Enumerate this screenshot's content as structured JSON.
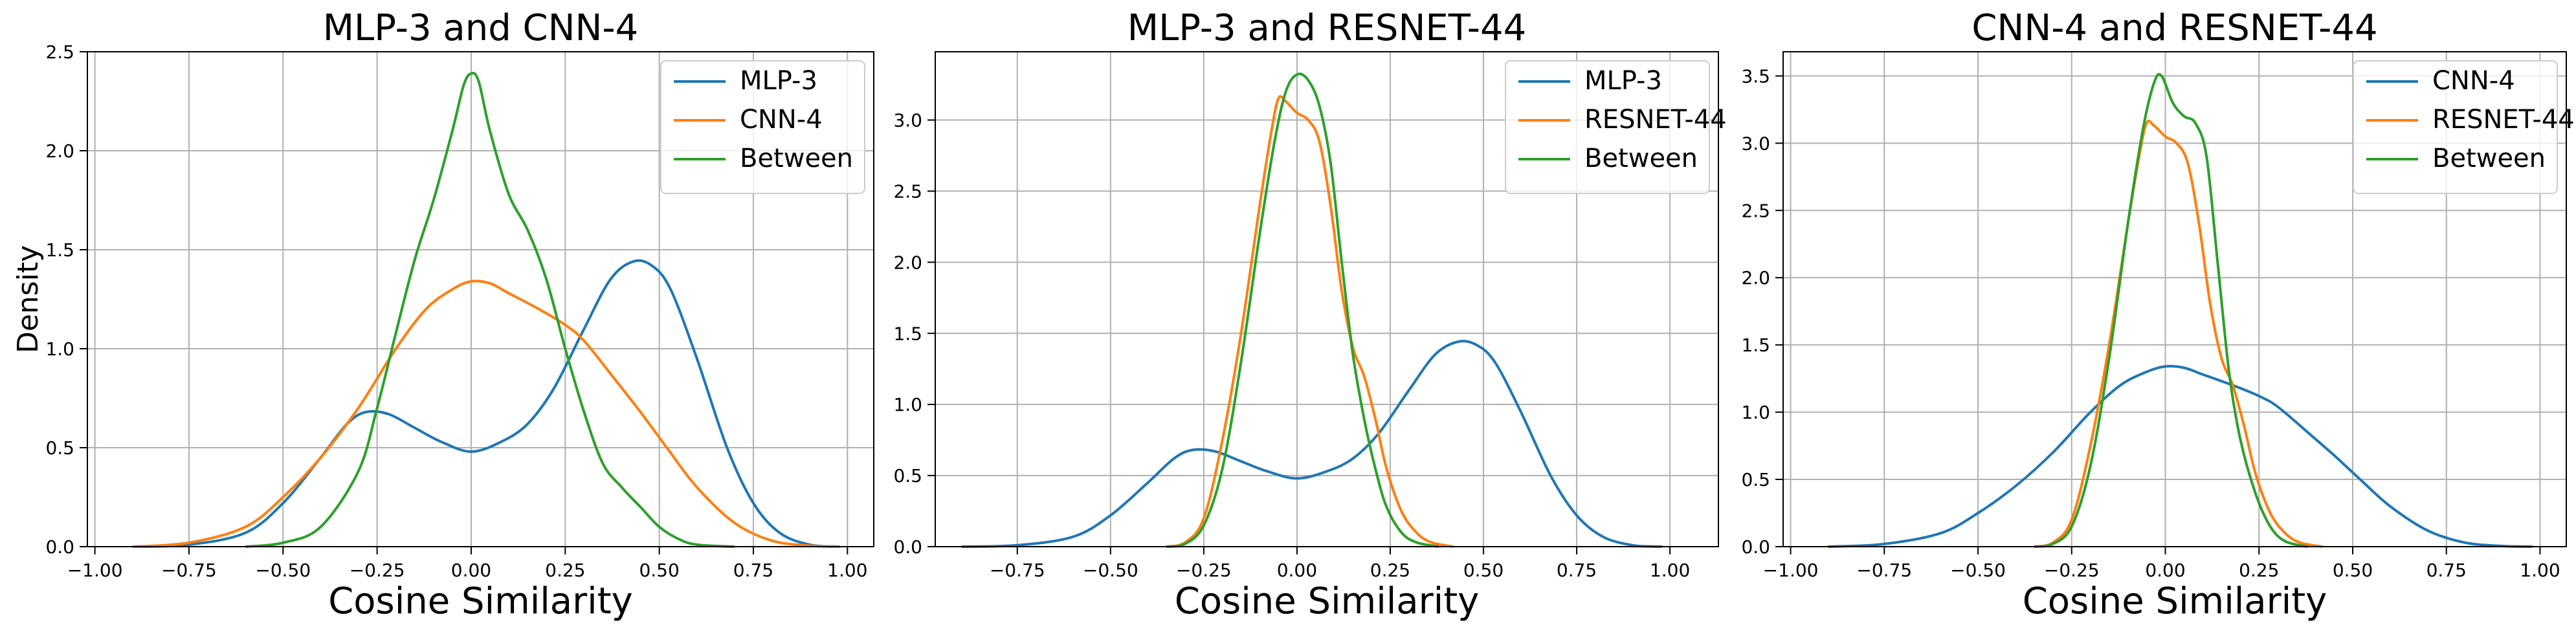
{
  "chart_data": [
    {
      "type": "line",
      "title": "MLP-3 and CNN-4",
      "xlabel": "Cosine Similarity",
      "ylabel": "Density",
      "xlim": [
        -1.02,
        1.07
      ],
      "ylim": [
        0,
        2.5
      ],
      "xticks": [
        -1.0,
        -0.75,
        -0.5,
        -0.25,
        0.0,
        0.25,
        0.5,
        0.75,
        1.0
      ],
      "xtick_labels": [
        "−1.00",
        "−0.75",
        "−0.50",
        "−0.25",
        "0.00",
        "0.25",
        "0.50",
        "0.75",
        "1.00"
      ],
      "yticks": [
        0,
        0.5,
        1.0,
        1.5,
        2.0,
        2.5
      ],
      "ytick_labels": [
        "0.0",
        "0.5",
        "1.0",
        "1.5",
        "2.0",
        "2.5"
      ],
      "grid": true,
      "legend_position": "top-right",
      "series": [
        {
          "name": "MLP-3",
          "color": "#1f77b4",
          "x": [
            -0.9,
            -0.75,
            -0.6,
            -0.5,
            -0.4,
            -0.33,
            -0.28,
            -0.22,
            -0.15,
            -0.08,
            0.0,
            0.08,
            0.15,
            0.22,
            0.3,
            0.37,
            0.43,
            0.48,
            0.53,
            0.6,
            0.68,
            0.75,
            0.82,
            0.9,
            0.98
          ],
          "y": [
            0.0,
            0.01,
            0.07,
            0.22,
            0.45,
            0.62,
            0.68,
            0.67,
            0.6,
            0.53,
            0.48,
            0.53,
            0.62,
            0.8,
            1.1,
            1.35,
            1.44,
            1.42,
            1.3,
            0.95,
            0.5,
            0.22,
            0.07,
            0.01,
            0.0
          ]
        },
        {
          "name": "CNN-4",
          "color": "#ff7f0e",
          "x": [
            -0.9,
            -0.75,
            -0.6,
            -0.5,
            -0.4,
            -0.3,
            -0.2,
            -0.12,
            -0.05,
            0.0,
            0.05,
            0.1,
            0.18,
            0.25,
            0.3,
            0.38,
            0.45,
            0.52,
            0.6,
            0.7,
            0.8,
            0.9,
            0.98
          ],
          "y": [
            0.0,
            0.02,
            0.1,
            0.25,
            0.45,
            0.7,
            1.0,
            1.2,
            1.3,
            1.34,
            1.33,
            1.28,
            1.2,
            1.12,
            1.04,
            0.85,
            0.68,
            0.5,
            0.3,
            0.12,
            0.03,
            0.005,
            0.0
          ]
        },
        {
          "name": "Between",
          "color": "#2ca02c",
          "x": [
            -0.6,
            -0.5,
            -0.4,
            -0.3,
            -0.25,
            -0.2,
            -0.15,
            -0.1,
            -0.05,
            -0.02,
            0.0,
            0.02,
            0.05,
            0.1,
            0.15,
            0.2,
            0.25,
            0.3,
            0.35,
            0.4,
            0.45,
            0.5,
            0.55,
            0.6,
            0.7
          ],
          "y": [
            0.0,
            0.02,
            0.1,
            0.38,
            0.7,
            1.08,
            1.45,
            1.75,
            2.1,
            2.33,
            2.39,
            2.35,
            2.1,
            1.78,
            1.6,
            1.35,
            1.0,
            0.68,
            0.42,
            0.3,
            0.2,
            0.1,
            0.04,
            0.01,
            0.0
          ]
        }
      ]
    },
    {
      "type": "line",
      "title": "MLP-3 and RESNET-44",
      "xlabel": "Cosine Similarity",
      "ylabel": "",
      "xlim": [
        -0.97,
        1.13
      ],
      "ylim": [
        0,
        3.48
      ],
      "xticks": [
        -0.75,
        -0.5,
        -0.25,
        0.0,
        0.25,
        0.5,
        0.75,
        1.0
      ],
      "xtick_labels": [
        "−0.75",
        "−0.50",
        "−0.25",
        "0.00",
        "0.25",
        "0.50",
        "0.75",
        "1.00"
      ],
      "yticks": [
        0,
        0.5,
        1.0,
        1.5,
        2.0,
        2.5,
        3.0
      ],
      "ytick_labels": [
        "0.0",
        "0.5",
        "1.0",
        "1.5",
        "2.0",
        "2.5",
        "3.0"
      ],
      "grid": true,
      "legend_position": "top-right",
      "series": [
        {
          "name": "MLP-3",
          "color": "#1f77b4",
          "x": [
            -0.9,
            -0.75,
            -0.6,
            -0.5,
            -0.4,
            -0.33,
            -0.28,
            -0.22,
            -0.15,
            -0.08,
            0.0,
            0.08,
            0.15,
            0.22,
            0.3,
            0.37,
            0.43,
            0.48,
            0.53,
            0.6,
            0.68,
            0.75,
            0.82,
            0.9,
            0.98
          ],
          "y": [
            0.0,
            0.01,
            0.07,
            0.22,
            0.45,
            0.62,
            0.68,
            0.67,
            0.6,
            0.53,
            0.48,
            0.53,
            0.62,
            0.8,
            1.1,
            1.35,
            1.44,
            1.42,
            1.3,
            0.95,
            0.5,
            0.22,
            0.07,
            0.01,
            0.0
          ]
        },
        {
          "name": "RESNET-44",
          "color": "#ff7f0e",
          "x": [
            -0.35,
            -0.3,
            -0.25,
            -0.2,
            -0.15,
            -0.1,
            -0.07,
            -0.05,
            -0.03,
            0.0,
            0.03,
            0.06,
            0.09,
            0.12,
            0.15,
            0.18,
            0.21,
            0.24,
            0.28,
            0.32,
            0.36,
            0.42
          ],
          "y": [
            0.0,
            0.03,
            0.2,
            0.75,
            1.5,
            2.4,
            2.9,
            3.15,
            3.13,
            3.05,
            3.0,
            2.85,
            2.4,
            1.8,
            1.4,
            1.2,
            0.9,
            0.55,
            0.25,
            0.1,
            0.03,
            0.0
          ]
        },
        {
          "name": "Between",
          "color": "#2ca02c",
          "x": [
            -0.35,
            -0.3,
            -0.25,
            -0.2,
            -0.15,
            -0.1,
            -0.06,
            -0.03,
            0.0,
            0.03,
            0.06,
            0.09,
            0.12,
            0.15,
            0.18,
            0.21,
            0.24,
            0.28,
            0.32,
            0.38
          ],
          "y": [
            0.0,
            0.02,
            0.15,
            0.55,
            1.3,
            2.2,
            2.85,
            3.2,
            3.32,
            3.28,
            3.1,
            2.7,
            2.0,
            1.35,
            0.9,
            0.55,
            0.28,
            0.1,
            0.03,
            0.0
          ]
        }
      ]
    },
    {
      "type": "line",
      "title": "CNN-4 and RESNET-44",
      "xlabel": "Cosine Similarity",
      "ylabel": "",
      "xlim": [
        -1.02,
        1.07
      ],
      "ylim": [
        0,
        3.68
      ],
      "xticks": [
        -1.0,
        -0.75,
        -0.5,
        -0.25,
        0.0,
        0.25,
        0.5,
        0.75,
        1.0
      ],
      "xtick_labels": [
        "−1.00",
        "−0.75",
        "−0.50",
        "−0.25",
        "0.00",
        "0.25",
        "0.50",
        "0.75",
        "1.00"
      ],
      "yticks": [
        0,
        0.5,
        1.0,
        1.5,
        2.0,
        2.5,
        3.0,
        3.5
      ],
      "ytick_labels": [
        "0.0",
        "0.5",
        "1.0",
        "1.5",
        "2.0",
        "2.5",
        "3.0",
        "3.5"
      ],
      "grid": true,
      "legend_position": "top-right",
      "series": [
        {
          "name": "CNN-4",
          "color": "#1f77b4",
          "x": [
            -0.9,
            -0.75,
            -0.6,
            -0.5,
            -0.4,
            -0.3,
            -0.2,
            -0.12,
            -0.05,
            0.0,
            0.05,
            0.1,
            0.18,
            0.25,
            0.3,
            0.38,
            0.45,
            0.52,
            0.6,
            0.7,
            0.8,
            0.9,
            0.98
          ],
          "y": [
            0.0,
            0.02,
            0.1,
            0.25,
            0.45,
            0.7,
            1.0,
            1.2,
            1.3,
            1.34,
            1.33,
            1.28,
            1.2,
            1.12,
            1.04,
            0.85,
            0.68,
            0.5,
            0.3,
            0.12,
            0.03,
            0.005,
            0.0
          ]
        },
        {
          "name": "RESNET-44",
          "color": "#ff7f0e",
          "x": [
            -0.35,
            -0.3,
            -0.25,
            -0.2,
            -0.15,
            -0.1,
            -0.07,
            -0.05,
            -0.03,
            0.0,
            0.03,
            0.06,
            0.09,
            0.12,
            0.15,
            0.18,
            0.21,
            0.24,
            0.28,
            0.32,
            0.36,
            0.42
          ],
          "y": [
            0.0,
            0.03,
            0.2,
            0.75,
            1.5,
            2.4,
            2.9,
            3.15,
            3.13,
            3.05,
            3.0,
            2.85,
            2.4,
            1.8,
            1.4,
            1.2,
            0.9,
            0.55,
            0.25,
            0.1,
            0.03,
            0.0
          ]
        },
        {
          "name": "Between",
          "color": "#2ca02c",
          "x": [
            -0.35,
            -0.3,
            -0.25,
            -0.2,
            -0.15,
            -0.1,
            -0.06,
            -0.03,
            -0.01,
            0.02,
            0.05,
            0.08,
            0.11,
            0.14,
            0.17,
            0.2,
            0.24,
            0.28,
            0.32,
            0.38
          ],
          "y": [
            0.0,
            0.02,
            0.15,
            0.6,
            1.4,
            2.4,
            3.1,
            3.45,
            3.5,
            3.3,
            3.2,
            3.15,
            2.9,
            2.1,
            1.3,
            0.8,
            0.4,
            0.15,
            0.04,
            0.0
          ]
        }
      ]
    }
  ]
}
